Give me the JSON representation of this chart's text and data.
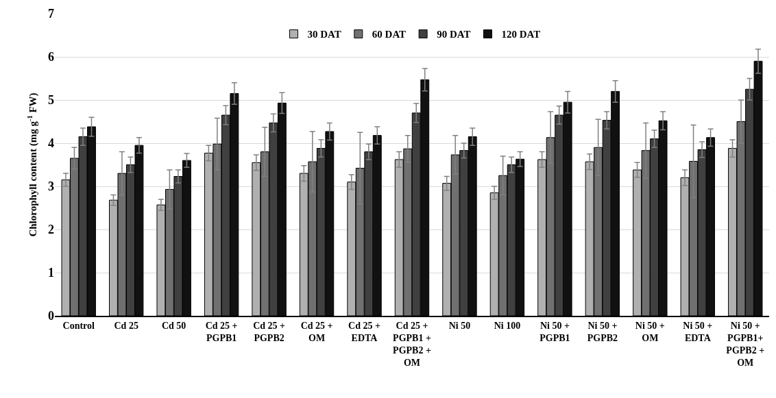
{
  "chart_data": {
    "type": "bar",
    "ylabel": "Chlorophyll content (mg g$^{-1}$ FW)",
    "categories": [
      "Control",
      "Cd 25",
      "Cd 50",
      "Cd 25 + PGPB1",
      "Cd 25 + PGPB2",
      "Cd 25 + OM",
      "Cd 25 + EDTA",
      "Cd 25 + PGPB1 + PGPB2 + OM",
      "Ni 50",
      "Ni 100",
      "Ni 50 + PGPB1",
      "Ni 50 + PGPB2",
      "Ni 50 + OM",
      "Ni 50 + EDTA",
      "Ni 50 + PGPB1+ PGPB2 + OM"
    ],
    "series": [
      {
        "name": "30 DAT",
        "color": "#b0b0b0",
        "values": [
          3.15,
          2.68,
          2.57,
          3.77,
          3.55,
          3.3,
          3.1,
          3.62,
          3.07,
          2.85,
          3.62,
          3.57,
          3.38,
          3.2,
          3.88
        ],
        "errors": [
          0.15,
          0.12,
          0.13,
          0.18,
          0.18,
          0.18,
          0.17,
          0.18,
          0.16,
          0.15,
          0.18,
          0.18,
          0.17,
          0.18,
          0.2
        ]
      },
      {
        "name": "60 DAT",
        "color": "#707070",
        "values": [
          3.65,
          3.3,
          2.93,
          3.98,
          3.8,
          3.57,
          3.42,
          3.87,
          3.73,
          3.25,
          4.13,
          3.9,
          3.83,
          3.58,
          4.5
        ],
        "errors": [
          0.25,
          0.5,
          0.45,
          0.6,
          0.57,
          0.7,
          0.83,
          0.31,
          0.45,
          0.45,
          0.6,
          0.65,
          0.64,
          0.84,
          0.5
        ]
      },
      {
        "name": "90 DAT",
        "color": "#404040",
        "values": [
          4.15,
          3.5,
          3.23,
          4.65,
          4.47,
          3.88,
          3.8,
          4.7,
          3.83,
          3.5,
          4.65,
          4.53,
          4.1,
          3.85,
          5.25
        ],
        "errors": [
          0.2,
          0.18,
          0.15,
          0.22,
          0.21,
          0.2,
          0.18,
          0.22,
          0.17,
          0.18,
          0.21,
          0.2,
          0.2,
          0.18,
          0.25
        ]
      },
      {
        "name": "120 DAT",
        "color": "#111111",
        "values": [
          4.38,
          3.95,
          3.6,
          5.15,
          4.93,
          4.27,
          4.18,
          5.47,
          4.15,
          3.63,
          4.95,
          5.2,
          4.52,
          4.13,
          5.9
        ],
        "errors": [
          0.22,
          0.18,
          0.16,
          0.25,
          0.24,
          0.2,
          0.2,
          0.26,
          0.2,
          0.17,
          0.25,
          0.25,
          0.21,
          0.2,
          0.28
        ]
      }
    ],
    "ylim": [
      0,
      7
    ],
    "yticks": [
      0,
      1,
      2,
      3,
      4,
      5,
      6,
      7
    ],
    "grid": "y",
    "legend": "top"
  }
}
